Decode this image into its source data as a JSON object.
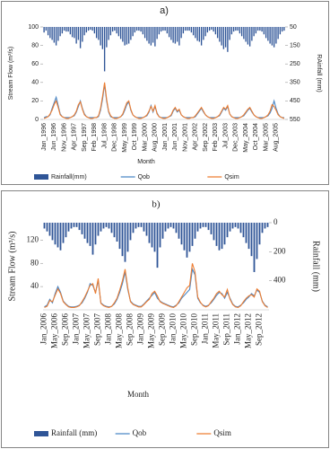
{
  "chart_data": [
    {
      "type": "bar-line",
      "title": "a)",
      "x_label": "Month",
      "y_label": "Stream Flow (m³/s)",
      "y2_label": "RAinfall (mm)",
      "categories": [
        "Jan_1996",
        null,
        null,
        null,
        null,
        "Jun_1996",
        null,
        null,
        null,
        null,
        "Nov_1996",
        null,
        null,
        null,
        null,
        "Apr_1997",
        null,
        null,
        null,
        null,
        "Sep_1997",
        null,
        null,
        null,
        null,
        "Feb_1998",
        null,
        null,
        null,
        null,
        "Jul_1998",
        null,
        null,
        null,
        null,
        "Dec_1998",
        null,
        null,
        null,
        null,
        "May_1999",
        null,
        null,
        null,
        null,
        "Oct_1999",
        null,
        null,
        null,
        null,
        "Mar_2000",
        null,
        null,
        null,
        null,
        "Aug_2000",
        null,
        null,
        null,
        null,
        "Jan_2001",
        null,
        null,
        null,
        null,
        "Jun_2001",
        null,
        null,
        null,
        null,
        "Nov_2001",
        null,
        null,
        null,
        null,
        "Apr_2002",
        null,
        null,
        null,
        null,
        "Sep_2002",
        null,
        null,
        null,
        null,
        "Feb_2003",
        null,
        null,
        null,
        null,
        "Jul_2003",
        null,
        null,
        null,
        null,
        "Dec_2003",
        null,
        null,
        null,
        null,
        "May_2004",
        null,
        null,
        null,
        null,
        "Oct_2004",
        null,
        null,
        null,
        null,
        "Mar_2005",
        null,
        null,
        null,
        null,
        "Aug_2005",
        null,
        null,
        null,
        null
      ],
      "ylim": [
        0,
        100
      ],
      "yticks": [
        0,
        20,
        40,
        60,
        80,
        100
      ],
      "y2lim": [
        50,
        550
      ],
      "y2ticks": [
        50,
        150,
        250,
        350,
        450,
        550
      ],
      "y2_reversed": true,
      "series": [
        {
          "name": "Rainfall(mm)",
          "type": "bar",
          "axis": "y2",
          "color": "#2f5597",
          "values": [
            80,
            70,
            95,
            110,
            120,
            135,
            150,
            125,
            100,
            85,
            70,
            75,
            75,
            90,
            105,
            110,
            140,
            120,
            165,
            130,
            95,
            80,
            70,
            65,
            70,
            85,
            110,
            120,
            150,
            170,
            290,
            160,
            120,
            95,
            75,
            70,
            85,
            100,
            115,
            130,
            150,
            145,
            140,
            120,
            100,
            80,
            70,
            70,
            75,
            90,
            110,
            125,
            140,
            150,
            135,
            155,
            115,
            90,
            75,
            70,
            70,
            85,
            105,
            120,
            135,
            140,
            130,
            150,
            110,
            85,
            70,
            70,
            70,
            80,
            95,
            110,
            125,
            130,
            150,
            120,
            100,
            80,
            70,
            65,
            75,
            90,
            110,
            130,
            150,
            170,
            160,
            185,
            120,
            90,
            75,
            70,
            70,
            85,
            100,
            115,
            130,
            145,
            155,
            125,
            100,
            85,
            70,
            70,
            75,
            90,
            110,
            125,
            140,
            150,
            160,
            140,
            115,
            90,
            75,
            70
          ]
        },
        {
          "name": "Qob",
          "type": "line",
          "axis": "y",
          "color": "#4a86c5",
          "values": [
            2,
            3,
            3,
            5,
            12,
            18,
            24,
            15,
            6,
            3,
            2,
            2,
            2,
            2,
            3,
            4,
            8,
            14,
            20,
            12,
            6,
            3,
            2,
            2,
            2,
            2,
            2,
            3,
            10,
            22,
            38,
            20,
            8,
            3,
            2,
            2,
            2,
            2,
            3,
            5,
            10,
            16,
            19,
            10,
            5,
            3,
            2,
            2,
            2,
            2,
            3,
            4,
            8,
            15,
            8,
            14,
            7,
            3,
            2,
            2,
            2,
            2,
            3,
            4,
            9,
            12,
            8,
            10,
            5,
            3,
            2,
            2,
            2,
            2,
            2,
            3,
            6,
            9,
            12,
            8,
            5,
            3,
            2,
            2,
            2,
            2,
            3,
            4,
            8,
            12,
            10,
            14,
            6,
            3,
            2,
            2,
            2,
            2,
            3,
            4,
            7,
            10,
            12,
            8,
            5,
            3,
            2,
            2,
            2,
            2,
            3,
            4,
            7,
            12,
            20,
            12,
            6,
            3,
            2,
            2
          ]
        },
        {
          "name": "Qsim",
          "type": "line",
          "axis": "y",
          "color": "#ed7d31",
          "values": [
            1,
            2,
            3,
            6,
            10,
            16,
            20,
            13,
            5,
            3,
            2,
            1,
            1,
            2,
            3,
            5,
            9,
            16,
            19,
            11,
            5,
            3,
            2,
            1,
            1,
            2,
            2,
            4,
            12,
            25,
            40,
            22,
            9,
            4,
            2,
            1,
            1,
            2,
            3,
            6,
            12,
            18,
            20,
            11,
            5,
            3,
            2,
            1,
            1,
            2,
            3,
            5,
            9,
            14,
            9,
            15,
            6,
            3,
            2,
            1,
            1,
            2,
            3,
            5,
            10,
            13,
            9,
            11,
            5,
            3,
            2,
            1,
            1,
            2,
            2,
            4,
            7,
            10,
            13,
            9,
            5,
            3,
            2,
            1,
            1,
            2,
            3,
            5,
            9,
            13,
            11,
            15,
            6,
            3,
            2,
            1,
            1,
            2,
            3,
            5,
            8,
            11,
            13,
            9,
            5,
            3,
            2,
            1,
            1,
            2,
            3,
            5,
            9,
            16,
            14,
            10,
            5,
            3,
            2,
            1
          ]
        }
      ]
    },
    {
      "type": "bar-line",
      "title": "b)",
      "x_label": "Month",
      "y_label": "Stream Flow (m³/s)",
      "y2_label": "Rainfall (mm)",
      "categories": [
        "Jan_2006",
        null,
        null,
        null,
        "May_2006",
        null,
        null,
        null,
        "Sep_2006",
        null,
        null,
        null,
        "Jan_2007",
        null,
        null,
        null,
        "May_2007",
        null,
        null,
        null,
        "Sep_2007",
        null,
        null,
        null,
        "Jan_2008",
        null,
        null,
        null,
        "May_2008",
        null,
        null,
        null,
        "Sep_2008",
        null,
        null,
        null,
        "Jan_2009",
        null,
        null,
        null,
        "May_2009",
        null,
        null,
        null,
        "Sep_2009",
        null,
        null,
        null,
        "Jan_2010",
        null,
        null,
        null,
        "May_2010",
        null,
        null,
        null,
        "Sep_2010",
        null,
        null,
        null,
        "Jan_2011",
        null,
        null,
        null,
        "May_2011",
        null,
        null,
        null,
        "Sep_2011",
        null,
        null,
        null,
        "Jan_2012",
        null,
        null,
        null,
        "May_2012",
        null,
        null,
        null,
        "Sep_2012",
        null,
        null,
        null
      ],
      "ylim": [
        0,
        150
      ],
      "yticks": [
        40,
        80,
        120
      ],
      "y2lim": [
        0,
        600
      ],
      "y2ticks": [
        0,
        200,
        400
      ],
      "y2_reversed": true,
      "series": [
        {
          "name": "Rainfall (mm)",
          "type": "bar",
          "axis": "y2",
          "color": "#2f5597",
          "values": [
            40,
            60,
            90,
            120,
            150,
            170,
            190,
            140,
            100,
            60,
            40,
            30,
            30,
            50,
            80,
            110,
            140,
            160,
            220,
            150,
            90,
            60,
            40,
            30,
            40,
            70,
            100,
            130,
            180,
            230,
            270,
            200,
            120,
            70,
            40,
            30,
            30,
            60,
            90,
            140,
            170,
            200,
            310,
            170,
            110,
            60,
            40,
            30,
            40,
            70,
            110,
            150,
            190,
            240,
            200,
            160,
            110,
            60,
            40,
            30,
            30,
            50,
            80,
            120,
            160,
            190,
            180,
            150,
            100,
            60,
            40,
            30,
            40,
            70,
            100,
            140,
            180,
            230,
            340,
            250,
            150,
            70,
            40,
            30
          ]
        },
        {
          "name": "Qob",
          "type": "line",
          "axis": "y",
          "color": "#4a86c5",
          "values": [
            5,
            8,
            18,
            12,
            28,
            40,
            30,
            15,
            10,
            6,
            5,
            5,
            6,
            8,
            12,
            20,
            30,
            45,
            42,
            30,
            50,
            12,
            8,
            6,
            5,
            6,
            10,
            18,
            30,
            45,
            65,
            35,
            15,
            10,
            8,
            6,
            6,
            10,
            15,
            20,
            25,
            30,
            20,
            15,
            12,
            10,
            8,
            6,
            5,
            8,
            12,
            20,
            25,
            30,
            35,
            70,
            60,
            20,
            12,
            8,
            6,
            8,
            12,
            18,
            25,
            30,
            28,
            20,
            30,
            20,
            10,
            6,
            5,
            8,
            12,
            18,
            22,
            28,
            24,
            34,
            30,
            15,
            8,
            5
          ]
        },
        {
          "name": "Qsim",
          "type": "line",
          "axis": "y",
          "color": "#ed7d31",
          "values": [
            4,
            6,
            16,
            14,
            25,
            36,
            28,
            14,
            9,
            5,
            4,
            4,
            5,
            7,
            14,
            22,
            32,
            42,
            45,
            28,
            54,
            11,
            7,
            5,
            4,
            6,
            12,
            20,
            34,
            50,
            70,
            38,
            14,
            9,
            7,
            5,
            5,
            9,
            14,
            18,
            28,
            32,
            24,
            14,
            11,
            9,
            7,
            5,
            4,
            7,
            14,
            22,
            30,
            38,
            42,
            80,
            65,
            22,
            13,
            7,
            5,
            7,
            14,
            20,
            28,
            32,
            26,
            22,
            35,
            18,
            9,
            5,
            4,
            7,
            14,
            20,
            24,
            26,
            22,
            36,
            32,
            14,
            7,
            4
          ]
        }
      ]
    }
  ]
}
